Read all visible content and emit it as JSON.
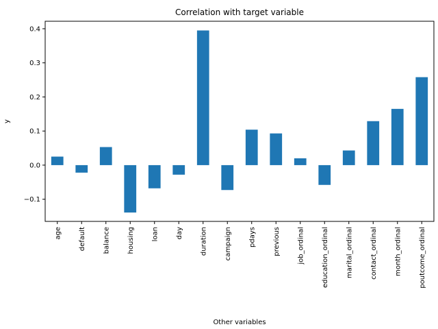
{
  "chart_data": {
    "type": "bar",
    "title": "Correlation with target variable",
    "xlabel": "Other variables",
    "ylabel": "y",
    "categories": [
      "age",
      "default",
      "balance",
      "housing",
      "loan",
      "day",
      "duration",
      "campaign",
      "pdays",
      "previous",
      "job_ordinal",
      "education_ordinal",
      "marital_ordinal",
      "contact_ordinal",
      "month_ordinal",
      "poutcome_ordinal"
    ],
    "values": [
      0.025,
      -0.022,
      0.053,
      -0.139,
      -0.068,
      -0.028,
      0.395,
      -0.073,
      0.104,
      0.093,
      0.02,
      -0.058,
      0.043,
      0.129,
      0.165,
      0.258
    ],
    "ylim": [
      -0.165,
      0.422
    ],
    "yticks": [
      -0.1,
      0.0,
      0.1,
      0.2,
      0.3,
      0.4
    ],
    "ytick_labels": [
      "−0.1",
      "0.0",
      "0.1",
      "0.2",
      "0.3",
      "0.4"
    ],
    "bar_color": "#1f77b4",
    "grid": false,
    "legend": "none"
  }
}
